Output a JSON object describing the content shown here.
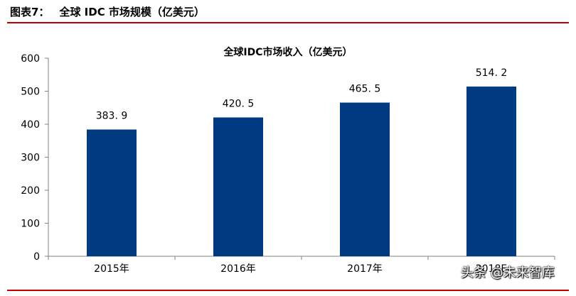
{
  "caption": {
    "label": "图表7：",
    "title": "全球 IDC 市场规模（亿美元）"
  },
  "chart_data": {
    "type": "bar",
    "title": "全球IDC市场收入（亿美元）",
    "categories": [
      "2015年",
      "2016年",
      "2017年",
      "2018E"
    ],
    "values": [
      383.9,
      420.5,
      465.5,
      514.2
    ],
    "value_labels": [
      "383. 9",
      "420. 5",
      "465. 5",
      "514. 2"
    ],
    "ylim": [
      0,
      600
    ],
    "yticks": [
      0,
      100,
      200,
      300,
      400,
      500,
      600
    ],
    "xlabel": "",
    "ylabel": "",
    "grid": false,
    "bar_color": "#003a80"
  },
  "watermark": "头条 @未来智库",
  "colors": {
    "rule": "#c00000",
    "bar": "#003a80"
  }
}
